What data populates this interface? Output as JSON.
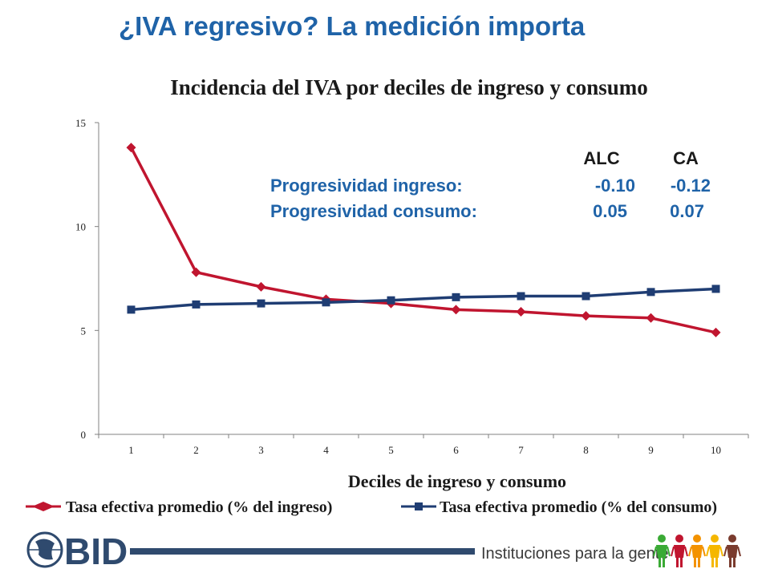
{
  "slide": {
    "title": "¿IVA regresivo? La medición importa"
  },
  "chart_data": {
    "type": "line",
    "title": "Incidencia del IVA por deciles de ingreso y consumo",
    "xlabel": "Deciles de ingreso y consumo",
    "ylabel": "",
    "categories": [
      "1",
      "2",
      "3",
      "4",
      "5",
      "6",
      "7",
      "8",
      "9",
      "10"
    ],
    "ylim": [
      0,
      15
    ],
    "yticks": [
      "0",
      "5",
      "10",
      "15"
    ],
    "grid": false,
    "legend_position": "bottom",
    "series": [
      {
        "name": "Tasa efectiva promedio (% del ingreso)",
        "color": "#C0152F",
        "marker": "diamond",
        "values": [
          13.8,
          7.8,
          7.1,
          6.5,
          6.3,
          6.0,
          5.9,
          5.7,
          5.6,
          4.9
        ]
      },
      {
        "name": "Tasa efectiva promedio (% del consumo)",
        "color": "#1F3D73",
        "marker": "square",
        "values": [
          6.0,
          6.25,
          6.3,
          6.35,
          6.45,
          6.6,
          6.65,
          6.65,
          6.85,
          7.0
        ]
      }
    ],
    "annotations": {
      "col_alc": "ALC",
      "col_ca": "CA",
      "row1_label": "Progresividad ingreso:",
      "row1_alc": "-0.10",
      "row1_ca": "-0.12",
      "row2_label": "Progresividad consumo:",
      "row2_alc": "0.05",
      "row2_ca": "0.07"
    }
  },
  "footer": {
    "logo_text": "BID",
    "tagline": "Instituciones para la gente",
    "colors": {
      "accent_blue": "#1F63A8",
      "footer_navy": "#2f4a6e",
      "figure_colors": [
        "#3aaa35",
        "#c0152f",
        "#f39200",
        "#f5b700",
        "#7a3b2e"
      ]
    }
  }
}
